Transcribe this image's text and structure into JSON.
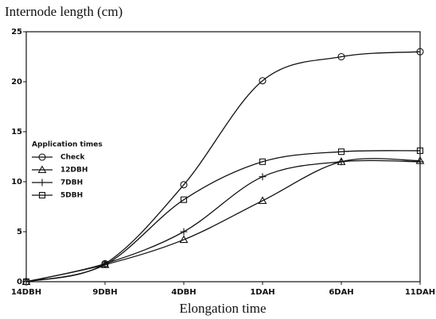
{
  "chart_data": {
    "type": "line",
    "title": "Internode length (cm)",
    "x_label": "Elongation time",
    "legend_title": "Application times",
    "categories": [
      "14DBH",
      "9DBH",
      "4DBH",
      "1DAH",
      "6DAH",
      "11DAH"
    ],
    "series": [
      {
        "name": "Check",
        "color": "#111111",
        "marker": "circle",
        "values": [
          0,
          1.8,
          9.7,
          20.1,
          22.5,
          23
        ]
      },
      {
        "name": "12DBH",
        "color": "#111111",
        "marker": "triangle",
        "values": [
          0,
          1.7,
          4.2,
          8.1,
          12,
          12.1
        ]
      },
      {
        "name": "7DBH",
        "color": "#111111",
        "marker": "plus",
        "values": [
          0,
          1.8,
          5,
          10.5,
          12,
          12
        ]
      },
      {
        "name": "5DBH",
        "color": "#111111",
        "marker": "square",
        "values": [
          0,
          1.7,
          8.2,
          12,
          13,
          13.1
        ]
      }
    ],
    "ylim": [
      0,
      25
    ],
    "yticks": [
      0,
      5,
      10,
      15,
      20,
      25
    ],
    "grid": false
  }
}
